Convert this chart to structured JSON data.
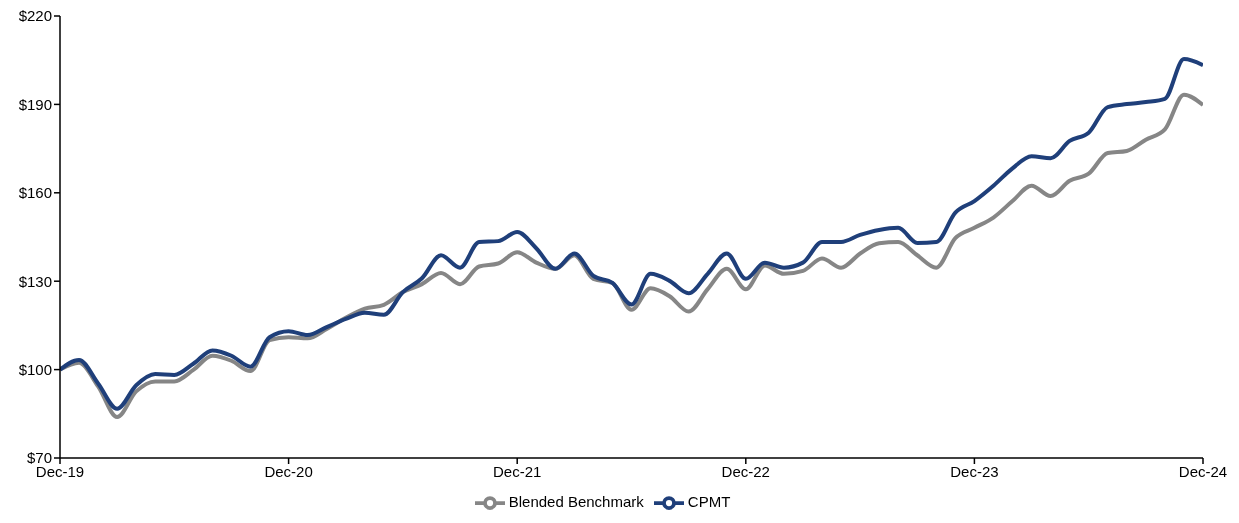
{
  "chart_data": {
    "type": "line",
    "x": [
      "2019-12",
      "2020-01",
      "2020-02",
      "2020-03",
      "2020-04",
      "2020-05",
      "2020-06",
      "2020-07",
      "2020-08",
      "2020-09",
      "2020-10",
      "2020-11",
      "2020-12",
      "2021-01",
      "2021-02",
      "2021-03",
      "2021-04",
      "2021-05",
      "2021-06",
      "2021-07",
      "2021-08",
      "2021-09",
      "2021-10",
      "2021-11",
      "2021-12",
      "2022-01",
      "2022-02",
      "2022-03",
      "2022-04",
      "2022-05",
      "2022-06",
      "2022-07",
      "2022-08",
      "2022-09",
      "2022-10",
      "2022-11",
      "2022-12",
      "2023-01",
      "2023-02",
      "2023-03",
      "2023-04",
      "2023-05",
      "2023-06",
      "2023-07",
      "2023-08",
      "2023-09",
      "2023-10",
      "2023-11",
      "2023-12",
      "2024-01",
      "2024-02",
      "2024-03",
      "2024-04",
      "2024-05",
      "2024-06",
      "2024-07",
      "2024-08",
      "2024-09",
      "2024-10",
      "2024-11",
      "2024-12"
    ],
    "series": [
      {
        "name": "Blended Benchmark",
        "color": "#868686",
        "values": [
          100,
          102.3,
          94.3,
          83.9,
          92.6,
          96,
          96,
          99.9,
          104.7,
          103,
          99.5,
          110,
          111,
          110.6,
          113.8,
          117.6,
          120.7,
          122,
          126.3,
          129,
          132.8,
          129,
          135,
          136,
          139.8,
          136.3,
          134.2,
          138.8,
          130.8,
          129.4,
          120.3,
          127.6,
          124.9,
          119.7,
          127.3,
          134.2,
          127.3,
          135.3,
          132.5,
          133.5,
          137.7,
          134.6,
          139.4,
          142.9,
          143.3,
          138.8,
          134.6,
          144.6,
          148.1,
          151.6,
          157.2,
          162.4,
          158.9,
          164.1,
          166.5,
          173.5,
          174.2,
          178,
          181.5,
          193.3,
          189.8
        ]
      },
      {
        "name": "CPMT",
        "color": "#1f3f7a",
        "values": [
          100,
          103.3,
          95.3,
          86.7,
          94.7,
          98.5,
          98.2,
          102,
          106.5,
          104.7,
          101,
          111,
          113,
          111.7,
          114.4,
          117.2,
          119.3,
          118.6,
          126.3,
          131,
          138.8,
          134.6,
          143.3,
          143.6,
          146.7,
          141.2,
          134.2,
          139.4,
          131.8,
          129.4,
          122.1,
          132.5,
          130.1,
          125.9,
          132.5,
          139.4,
          130.8,
          136.3,
          134.6,
          136.3,
          143.3,
          143.3,
          145.7,
          147.4,
          148.1,
          143,
          143.3,
          153.3,
          157.2,
          162.4,
          168.3,
          172.4,
          171.7,
          177.6,
          180.4,
          189.1,
          190.1,
          190.8,
          191.9,
          205.4,
          203.3
        ]
      }
    ],
    "ylim": [
      70,
      220
    ],
    "yticks": [
      {
        "value": 70,
        "label": "$70"
      },
      {
        "value": 100,
        "label": "$100"
      },
      {
        "value": 130,
        "label": "$130"
      },
      {
        "value": 160,
        "label": "$160"
      },
      {
        "value": 190,
        "label": "$190"
      },
      {
        "value": 220,
        "label": "$220"
      }
    ],
    "xlim": [
      "2019-12",
      "2024-12"
    ],
    "xticks": [
      {
        "value": "2019-12",
        "label": "Dec-19"
      },
      {
        "value": "2020-12",
        "label": "Dec-20"
      },
      {
        "value": "2021-12",
        "label": "Dec-21"
      },
      {
        "value": "2022-12",
        "label": "Dec-22"
      },
      {
        "value": "2023-12",
        "label": "Dec-23"
      },
      {
        "value": "2024-12",
        "label": "Dec-24"
      }
    ],
    "grid": false,
    "legend": "bottom",
    "marker": "none",
    "line_style": "solid"
  }
}
